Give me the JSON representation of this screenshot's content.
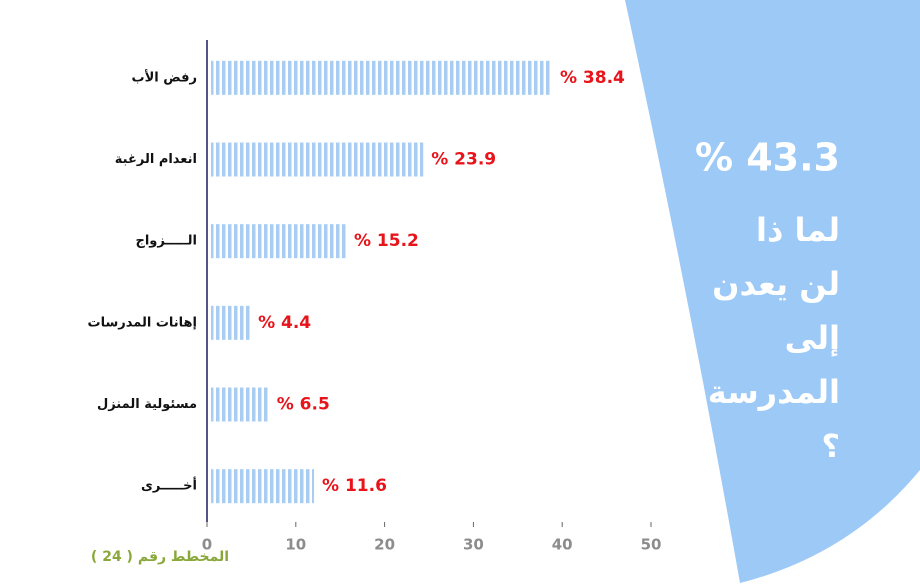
{
  "chart_data": {
    "type": "bar",
    "orientation": "horizontal",
    "categories": [
      "رفض الأب",
      "انعدام الرغبة",
      "الـــــزواج",
      "إهانات المدرسات",
      "مسئولية المنزل",
      "أخـــــرى"
    ],
    "values": [
      38.4,
      23.9,
      15.2,
      4.4,
      6.5,
      11.6
    ],
    "value_labels": [
      "% 38.4",
      "% 23.9",
      "% 15.2",
      "% 4.4",
      "% 6.5",
      "% 11.6"
    ],
    "color": "#a9cdf2",
    "label_color": "#e8141b",
    "xlim": [
      0,
      50
    ],
    "xticks": [
      0,
      10,
      20,
      30,
      40,
      50
    ],
    "highlight_label": "% 43.3",
    "question_lines": [
      "لما ذا",
      "لن يعدن",
      "إلى",
      "المدرسة",
      "؟"
    ],
    "caption": "المخطط رقم ( 24 )"
  }
}
